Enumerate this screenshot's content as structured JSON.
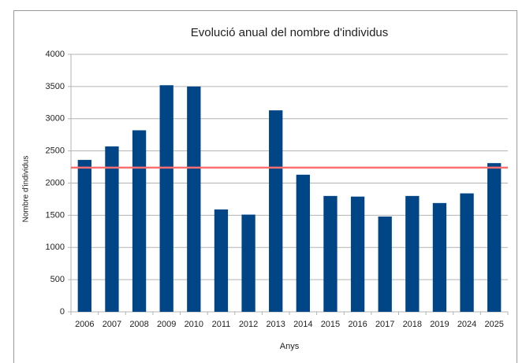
{
  "chart_data": {
    "type": "bar",
    "title": "Evolució anual del nombre d'individus",
    "x_label": "Anys",
    "y_label": "Nombre d'individus",
    "categories": [
      "2006",
      "2007",
      "2008",
      "2009",
      "2010",
      "2011",
      "2012",
      "2013",
      "2014",
      "2015",
      "2016",
      "2017",
      "2018",
      "2019",
      "2024",
      "2025"
    ],
    "values": [
      2360,
      2570,
      2820,
      3520,
      3500,
      1590,
      1510,
      3130,
      2130,
      1800,
      1790,
      1480,
      1800,
      1690,
      1840,
      2310
    ],
    "color": "#004586",
    "reference_line": {
      "value": 2240,
      "color": "#ff6f6f"
    },
    "ylim": [
      0,
      4000
    ],
    "yticks": [
      0,
      500,
      1000,
      1500,
      2000,
      2500,
      3000,
      3500,
      4000
    ],
    "grid": true
  }
}
